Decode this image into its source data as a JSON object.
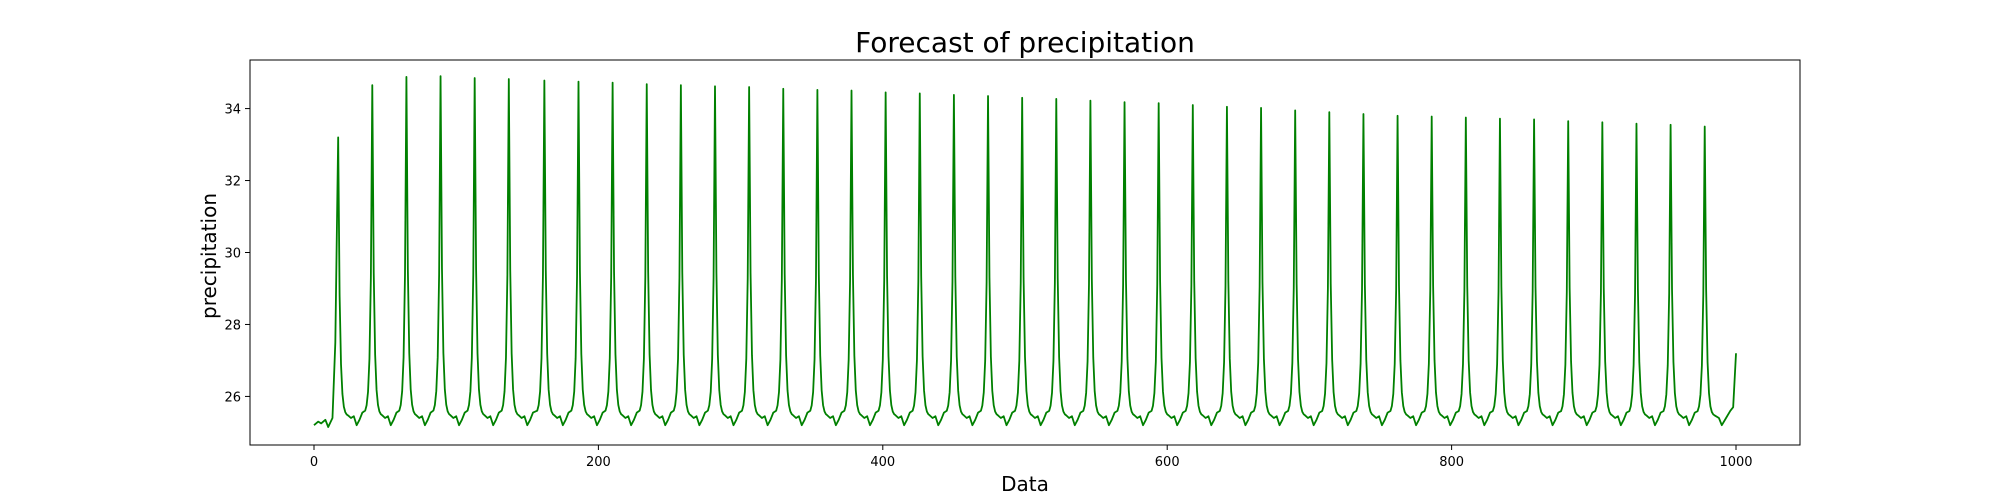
{
  "chart_data": {
    "type": "line",
    "title": "Forecast of precipitation",
    "xlabel": "Data",
    "ylabel": "precipitation",
    "xlim": [
      -45,
      1045
    ],
    "ylim": [
      24.65,
      35.35
    ],
    "xticks": [
      0,
      200,
      400,
      600,
      800,
      1000
    ],
    "yticks": [
      26,
      28,
      30,
      32,
      34
    ],
    "grid": false,
    "legend": "none",
    "series_color": "#008000",
    "series": [
      {
        "baseline": 25.3,
        "first_point": [
          0,
          25.2
        ],
        "last_point": [
          1000,
          27.2
        ],
        "peaks": [
          [
            17,
            33.2
          ],
          [
            41,
            34.65
          ],
          [
            65,
            34.88
          ],
          [
            89,
            34.9
          ],
          [
            113,
            34.85
          ],
          [
            137,
            34.82
          ],
          [
            162,
            34.78
          ],
          [
            186,
            34.75
          ],
          [
            210,
            34.72
          ],
          [
            234,
            34.68
          ],
          [
            258,
            34.65
          ],
          [
            282,
            34.62
          ],
          [
            306,
            34.6
          ],
          [
            330,
            34.55
          ],
          [
            354,
            34.52
          ],
          [
            378,
            34.5
          ],
          [
            402,
            34.45
          ],
          [
            426,
            34.42
          ],
          [
            450,
            34.38
          ],
          [
            474,
            34.35
          ],
          [
            498,
            34.3
          ],
          [
            522,
            34.27
          ],
          [
            546,
            34.22
          ],
          [
            570,
            34.18
          ],
          [
            594,
            34.15
          ],
          [
            618,
            34.1
          ],
          [
            642,
            34.05
          ],
          [
            666,
            34.02
          ],
          [
            690,
            33.95
          ],
          [
            714,
            33.9
          ],
          [
            738,
            33.85
          ],
          [
            762,
            33.8
          ],
          [
            786,
            33.78
          ],
          [
            810,
            33.75
          ],
          [
            834,
            33.72
          ],
          [
            858,
            33.7
          ],
          [
            882,
            33.65
          ],
          [
            906,
            33.62
          ],
          [
            930,
            33.58
          ],
          [
            954,
            33.55
          ],
          [
            978,
            33.5
          ]
        ]
      }
    ]
  }
}
